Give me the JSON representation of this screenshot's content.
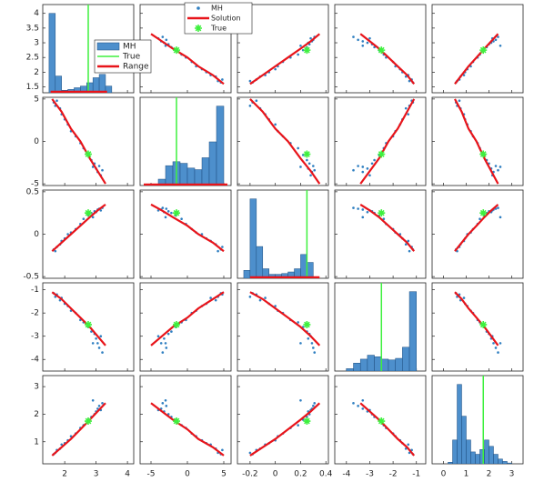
{
  "chart_data": {
    "type": "scatter_matrix",
    "samples": {
      "name": "MH",
      "color": "#2f7fc1",
      "values": [
        [
          1.65,
          4.6,
          -0.18,
          -1.15,
          0.55
        ],
        [
          1.7,
          4.2,
          -0.2,
          -1.3,
          0.6
        ],
        [
          1.75,
          4.8,
          -0.15,
          -1.2,
          0.7
        ],
        [
          1.85,
          3.9,
          -0.12,
          -1.45,
          0.75
        ],
        [
          1.9,
          3.2,
          -0.08,
          -1.35,
          0.9
        ],
        [
          2.0,
          2.6,
          -0.05,
          -1.6,
          0.95
        ],
        [
          2.1,
          2.0,
          0.0,
          -1.7,
          1.05
        ],
        [
          2.2,
          1.2,
          0.02,
          -1.9,
          1.2
        ],
        [
          2.35,
          0.6,
          0.06,
          -2.0,
          1.3
        ],
        [
          2.5,
          -0.2,
          0.12,
          -2.3,
          1.5
        ],
        [
          2.6,
          -0.8,
          0.18,
          -2.4,
          1.6
        ],
        [
          2.75,
          -1.6,
          0.22,
          -2.6,
          1.8
        ],
        [
          2.85,
          -2.2,
          0.25,
          -2.8,
          1.9
        ],
        [
          2.95,
          -2.6,
          0.27,
          -2.9,
          2.0
        ],
        [
          3.0,
          -3.2,
          0.26,
          -3.1,
          2.1
        ],
        [
          3.05,
          -3.6,
          0.29,
          -3.3,
          2.2
        ],
        [
          3.1,
          -2.9,
          0.3,
          -3.5,
          2.3
        ],
        [
          3.15,
          -4.0,
          0.28,
          -3.0,
          2.15
        ],
        [
          3.2,
          -3.4,
          0.31,
          -3.7,
          2.4
        ],
        [
          2.9,
          -3.0,
          0.2,
          -3.3,
          2.5
        ]
      ]
    },
    "solution": {
      "name": "Solution",
      "color": "#e8141a",
      "values": [
        [
          1.6,
          5,
          -0.2,
          -1.1,
          0.5
        ],
        [
          1.9,
          3.5,
          -0.1,
          -1.4,
          0.8
        ],
        [
          2.2,
          1.5,
          0,
          -1.8,
          1.1
        ],
        [
          2.5,
          0,
          0.1,
          -2.2,
          1.45
        ],
        [
          2.8,
          -2,
          0.2,
          -2.6,
          1.8
        ],
        [
          3.05,
          -3.5,
          0.28,
          -3.0,
          2.1
        ],
        [
          3.3,
          -5,
          0.35,
          -3.4,
          2.4
        ]
      ]
    },
    "true": {
      "name": "True",
      "color": "#3ef03e",
      "values": [
        2.75,
        -1.5,
        0.25,
        -2.5,
        1.75
      ]
    },
    "range": {
      "name": "Range",
      "color": "#e8141a"
    },
    "hist_color": "#4d8fcc",
    "variables": [
      {
        "xlim": [
          1.3,
          4.2
        ],
        "xticks": [
          2,
          3,
          4
        ],
        "ylim": [
          1.3,
          4.3
        ],
        "yticks": [
          1.5,
          2,
          2.5,
          3,
          3.5,
          4
        ],
        "hist": {
          "bins": [
            1.5,
            1.7,
            1.9,
            2.1,
            2.3,
            2.5,
            2.7,
            2.9,
            3.1,
            3.3,
            3.5
          ],
          "counts": [
            95,
            20,
            3,
            4,
            6,
            8,
            12,
            18,
            22,
            8
          ],
          "range": [
            1.55,
            3.35
          ]
        }
      },
      {
        "xlim": [
          -6.5,
          6
        ],
        "xticks": [
          -5,
          0,
          5
        ],
        "ylim": [
          -5.2,
          5.2
        ],
        "yticks": [
          -5,
          0,
          5
        ],
        "hist": {
          "bins": [
            -5,
            -4,
            -3,
            -2,
            -1,
            0,
            1,
            2,
            3,
            4,
            5
          ],
          "counts": [
            2,
            8,
            25,
            30,
            28,
            22,
            20,
            35,
            55,
            100
          ],
          "range": [
            -6,
            5.5
          ]
        }
      },
      {
        "xlim": [
          -0.3,
          0.42
        ],
        "xticks": [
          -0.2,
          0,
          0.2,
          0.4
        ],
        "ylim": [
          -0.52,
          0.52
        ],
        "yticks": [
          -0.5,
          0,
          0.5
        ],
        "hist": {
          "bins": [
            -0.25,
            -0.2,
            -0.15,
            -0.1,
            -0.05,
            0,
            0.05,
            0.1,
            0.15,
            0.2,
            0.25,
            0.3
          ],
          "counts": [
            10,
            100,
            40,
            12,
            5,
            5,
            6,
            8,
            12,
            30,
            20
          ],
          "range": [
            -0.2,
            0.35
          ]
        }
      },
      {
        "xlim": [
          -4.5,
          -0.6
        ],
        "xticks": [
          -4,
          -3,
          -2,
          -1
        ],
        "ylim": [
          -4.5,
          -0.7
        ],
        "yticks": [
          -1,
          -2,
          -3,
          -4
        ],
        "hist": {
          "bins": [
            -4,
            -3.7,
            -3.4,
            -3.1,
            -2.8,
            -2.5,
            -2.2,
            -1.9,
            -1.6,
            -1.3,
            -1
          ],
          "counts": [
            3,
            10,
            15,
            20,
            18,
            15,
            14,
            16,
            30,
            100
          ]
        }
      },
      {
        "xlim": [
          -0.5,
          3.5
        ],
        "xticks": [
          0,
          1,
          2,
          3
        ],
        "ylim": [
          0.2,
          3.4
        ],
        "yticks": [
          1,
          2,
          3
        ],
        "hist": {
          "bins": [
            0.2,
            0.4,
            0.6,
            0.8,
            1.0,
            1.2,
            1.4,
            1.6,
            1.8,
            2.0,
            2.2,
            2.4,
            2.6,
            2.8,
            3.0
          ],
          "counts": [
            2,
            30,
            100,
            60,
            30,
            15,
            12,
            18,
            30,
            22,
            12,
            6,
            3,
            1
          ]
        }
      }
    ]
  }
}
